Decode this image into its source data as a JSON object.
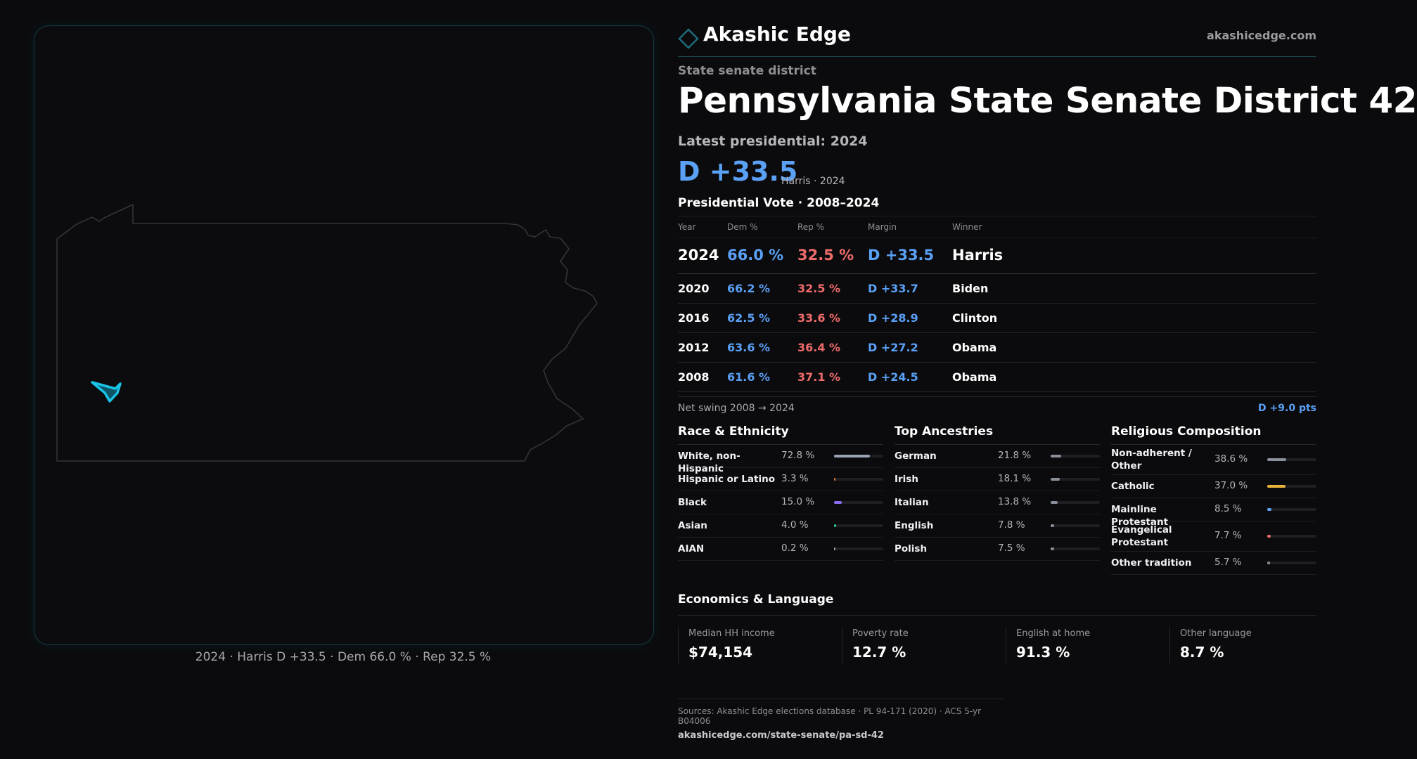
{
  "brand": {
    "name": "Akashic Edge",
    "url": "akashicedge.com",
    "accent": "#1e6b7a"
  },
  "district": {
    "kicker": "State senate district",
    "title": "Pennsylvania State Senate District 42",
    "latest_label": "Latest presidential: 2024",
    "margin": "D +33.5",
    "margin_sub": "Harris · 2024"
  },
  "map": {
    "caption": "2024 · Harris D +33.5 · Dem 66.0 % · Rep 32.5 %",
    "marker_icon": "district-marker-icon",
    "marker_color": "#19c3e6"
  },
  "vote": {
    "title": "Presidential Vote · 2008–2024",
    "headers": {
      "year": "Year",
      "dem": "Dem %",
      "rep": "Rep %",
      "margin": "Margin",
      "winner": "Winner"
    },
    "rows": [
      {
        "year": "2024",
        "dem": "66.0 %",
        "rep": "32.5 %",
        "margin": "D +33.5",
        "winner": "Harris"
      },
      {
        "year": "2020",
        "dem": "66.2 %",
        "rep": "32.5 %",
        "margin": "D +33.7",
        "winner": "Biden"
      },
      {
        "year": "2016",
        "dem": "62.5 %",
        "rep": "33.6 %",
        "margin": "D +28.9",
        "winner": "Clinton"
      },
      {
        "year": "2012",
        "dem": "63.6 %",
        "rep": "36.4 %",
        "margin": "D +27.2",
        "winner": "Obama"
      },
      {
        "year": "2008",
        "dem": "61.6 %",
        "rep": "37.1 %",
        "margin": "D +24.5",
        "winner": "Obama"
      }
    ],
    "swing_label": "Net swing 2008 → 2024",
    "swing_value": "D +9.0 pts"
  },
  "race": {
    "title": "Race & Ethnicity",
    "rows": [
      {
        "label": "White, non-Hispanic",
        "pct": "72.8 %",
        "value": 72.8,
        "color": "#9aa3b5"
      },
      {
        "label": "Hispanic or Latino",
        "pct": "3.3 %",
        "value": 3.3,
        "color": "#e07b39"
      },
      {
        "label": "Black",
        "pct": "15.0 %",
        "value": 15.0,
        "color": "#8b6cf0"
      },
      {
        "label": "Asian",
        "pct": "4.0 %",
        "value": 4.0,
        "color": "#2fc48d"
      },
      {
        "label": "AIAN",
        "pct": "0.2 %",
        "value": 0.2,
        "color": "#9aa3b5"
      }
    ]
  },
  "ancestry": {
    "title": "Top Ancestries",
    "rows": [
      {
        "label": "German",
        "pct": "21.8 %",
        "value": 21.8,
        "color": "#8a8f9c"
      },
      {
        "label": "Irish",
        "pct": "18.1 %",
        "value": 18.1,
        "color": "#8a8f9c"
      },
      {
        "label": "Italian",
        "pct": "13.8 %",
        "value": 13.8,
        "color": "#8a8f9c"
      },
      {
        "label": "English",
        "pct": "7.8 %",
        "value": 7.8,
        "color": "#8a8f9c"
      },
      {
        "label": "Polish",
        "pct": "7.5 %",
        "value": 7.5,
        "color": "#8a8f9c"
      }
    ]
  },
  "religion": {
    "title": "Religious Composition",
    "rows": [
      {
        "label": "Non-adherent / Other",
        "pct": "38.6 %",
        "value": 38.6,
        "color": "#8a8f9c"
      },
      {
        "label": "Catholic",
        "pct": "37.0 %",
        "value": 37.0,
        "color": "#e8b33a"
      },
      {
        "label": "Mainline Protestant",
        "pct": "8.5 %",
        "value": 8.5,
        "color": "#5aa0f5"
      },
      {
        "label": "Evangelical Protestant",
        "pct": "7.7 %",
        "value": 7.7,
        "color": "#ef6b6b"
      },
      {
        "label": "Other tradition",
        "pct": "5.7 %",
        "value": 5.7,
        "color": "#8a8f9c"
      }
    ]
  },
  "economics": {
    "title": "Economics & Language",
    "cards": [
      {
        "label": "Median HH income",
        "value": "$74,154"
      },
      {
        "label": "Poverty rate",
        "value": "12.7 %"
      },
      {
        "label": "English at home",
        "value": "91.3 %"
      },
      {
        "label": "Other language",
        "value": "8.7 %"
      }
    ]
  },
  "sources": {
    "text": "Sources: Akashic Edge elections database · PL 94-171 (2020) · ACS 5-yr B04006",
    "url": "akashicedge.com/state-senate/pa-sd-42"
  }
}
